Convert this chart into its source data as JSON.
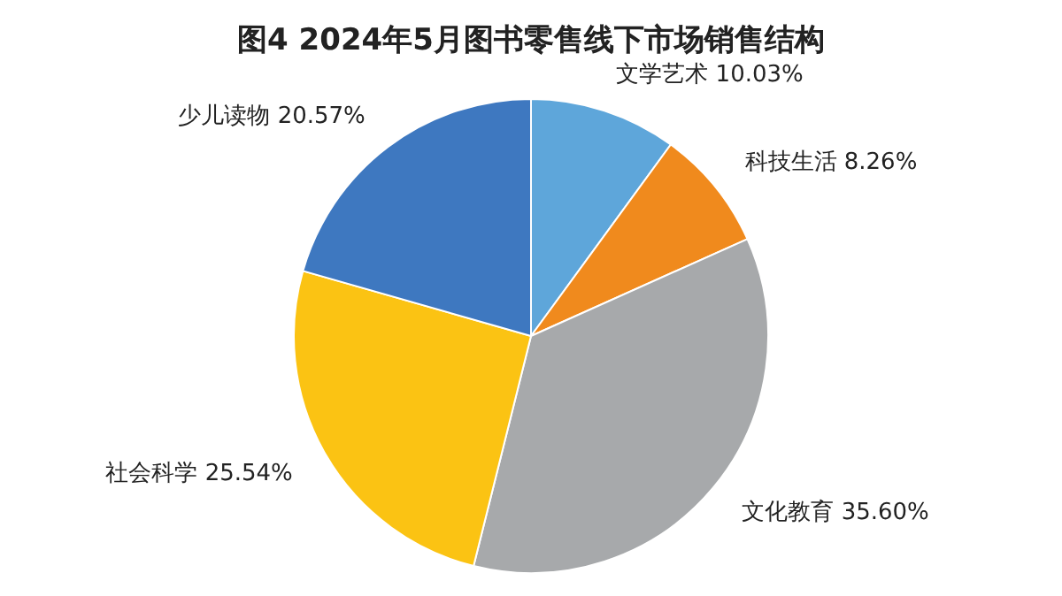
{
  "chart_data": {
    "type": "pie",
    "title": "图4  2024年5月图书零售线下市场销售结构",
    "categories": [
      "文学艺术",
      "科技生活",
      "文化教育",
      "社会科学",
      "少儿读物"
    ],
    "values": [
      10.03,
      8.26,
      35.6,
      25.54,
      20.57
    ],
    "colors": [
      "#5ea6da",
      "#f08a1d",
      "#a7a9ab",
      "#fbc313",
      "#3e78c0"
    ],
    "value_labels": [
      "10.03%",
      "8.26%",
      "35.60%",
      "25.54%",
      "20.57%"
    ]
  }
}
